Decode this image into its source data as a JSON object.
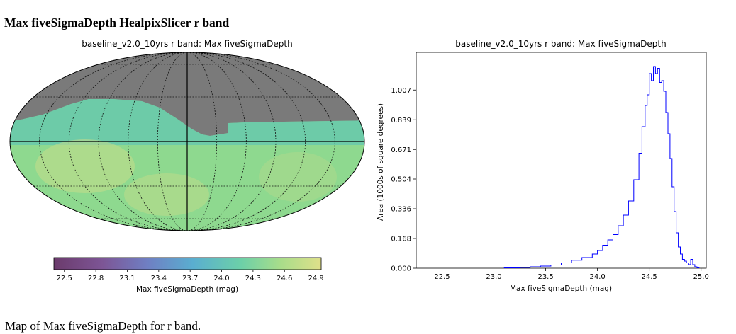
{
  "page": {
    "heading": "Max fiveSigmaDepth HealpixSlicer r band",
    "caption": "Map of Max fiveSigmaDepth for r band."
  },
  "chart_data": [
    {
      "type": "heatmap",
      "projection": "mollweide",
      "title": "baseline_v2.0_10yrs r band: Max fiveSigmaDepth",
      "colorbar": {
        "label": "Max fiveSigmaDepth (mag)",
        "range": [
          22.4,
          24.95
        ],
        "ticks": [
          22.5,
          22.8,
          23.1,
          23.4,
          23.7,
          24.0,
          24.3,
          24.6,
          24.9
        ],
        "tick_labels": [
          "22.5",
          "22.8",
          "23.1",
          "23.4",
          "23.7",
          "24.0",
          "24.3",
          "24.6",
          "24.9"
        ]
      },
      "no_data_color": "#7a7a7a",
      "grid": true,
      "typical_value": 24.5
    },
    {
      "type": "histogram",
      "title": "baseline_v2.0_10yrs r band: Max fiveSigmaDepth",
      "xlabel": "Max fiveSigmaDepth (mag)",
      "ylabel": "Area (1000s of square degrees)",
      "xlim": [
        22.25,
        25.05
      ],
      "ylim": [
        0,
        1.22
      ],
      "xticks": [
        22.5,
        23.0,
        23.5,
        24.0,
        24.5,
        25.0
      ],
      "xtick_labels": [
        "22.5",
        "23.0",
        "23.5",
        "24.0",
        "24.5",
        "25.0"
      ],
      "yticks": [
        0.0,
        0.168,
        0.336,
        0.504,
        0.671,
        0.839,
        1.007
      ],
      "ytick_labels": [
        "0.000",
        "0.168",
        "0.336",
        "0.504",
        "0.671",
        "0.839",
        "1.007"
      ],
      "line_color": "#0000ff",
      "bins": {
        "x": [
          23.1,
          23.25,
          23.35,
          23.45,
          23.55,
          23.65,
          23.75,
          23.85,
          23.95,
          24.0,
          24.05,
          24.1,
          24.15,
          24.2,
          24.25,
          24.3,
          24.35,
          24.4,
          24.43,
          24.46,
          24.48,
          24.5,
          24.52,
          24.54,
          24.56,
          24.58,
          24.6,
          24.62,
          24.64,
          24.66,
          24.68,
          24.7,
          24.72,
          24.74,
          24.76,
          24.78,
          24.8,
          24.82,
          24.84,
          24.86,
          24.88,
          24.9,
          24.92,
          24.94,
          24.96
        ],
        "y": [
          0.002,
          0.004,
          0.008,
          0.012,
          0.018,
          0.03,
          0.045,
          0.06,
          0.08,
          0.1,
          0.13,
          0.16,
          0.19,
          0.24,
          0.3,
          0.38,
          0.5,
          0.65,
          0.8,
          0.92,
          0.98,
          1.1,
          1.06,
          1.14,
          1.1,
          1.13,
          1.05,
          1.06,
          1.0,
          0.88,
          0.76,
          0.62,
          0.46,
          0.32,
          0.2,
          0.12,
          0.08,
          0.05,
          0.04,
          0.03,
          0.02,
          0.05,
          0.02,
          0.008,
          0.002
        ]
      }
    }
  ]
}
